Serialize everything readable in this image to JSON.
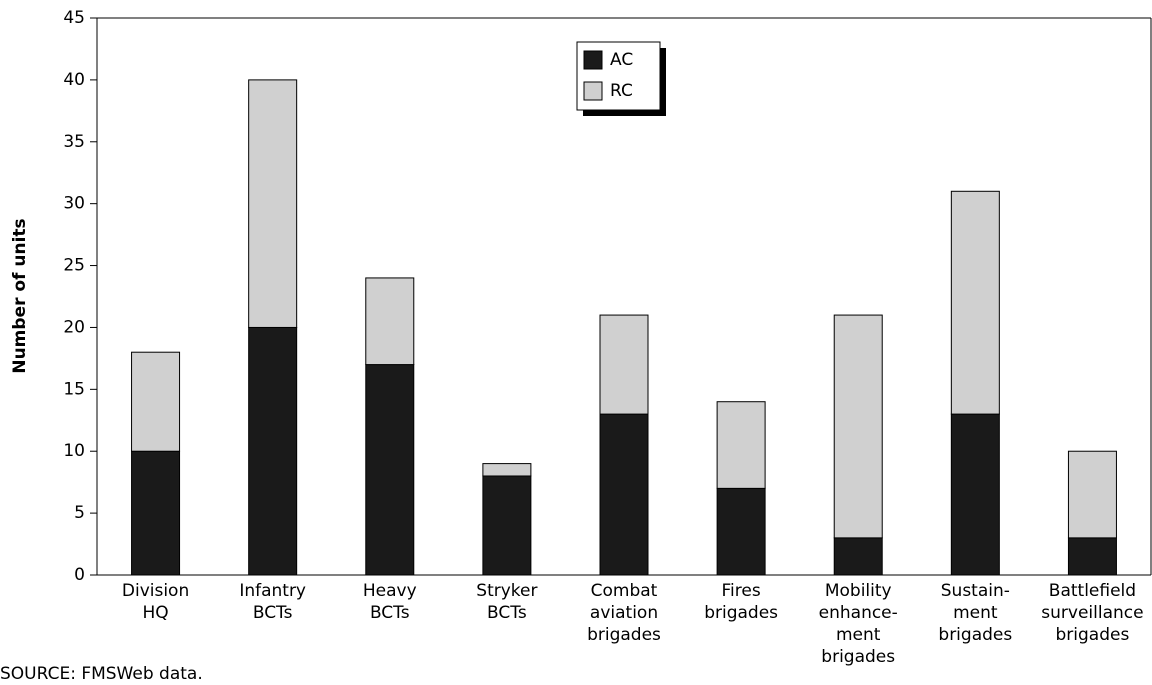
{
  "chart_data": {
    "type": "stacked-bar",
    "y_label": "Number of units",
    "source": "SOURCE: FMSWeb data.",
    "categories": [
      [
        "Division",
        "HQ"
      ],
      [
        "Infantry",
        "BCTs"
      ],
      [
        "Heavy",
        "BCTs"
      ],
      [
        "Stryker",
        "BCTs"
      ],
      [
        "Combat",
        "aviation",
        "brigades"
      ],
      [
        "Fires",
        "brigades"
      ],
      [
        "Mobility",
        "enhance-",
        "ment",
        "brigades"
      ],
      [
        "Sustain-",
        "ment",
        "brigades"
      ],
      [
        "Battlefield",
        "surveillance",
        "brigades"
      ]
    ],
    "series": [
      {
        "name": "AC",
        "color": "#1a1a1a",
        "values": [
          10,
          20,
          17,
          8,
          13,
          7,
          3,
          13,
          3
        ]
      },
      {
        "name": "RC",
        "color": "#d0d0d0",
        "values": [
          8,
          20,
          7,
          1,
          8,
          7,
          18,
          18,
          7
        ]
      }
    ],
    "ylim": [
      0,
      45
    ],
    "yticks": [
      0,
      5,
      10,
      15,
      20,
      25,
      30,
      35,
      40,
      45
    ],
    "legend": "top-center"
  }
}
